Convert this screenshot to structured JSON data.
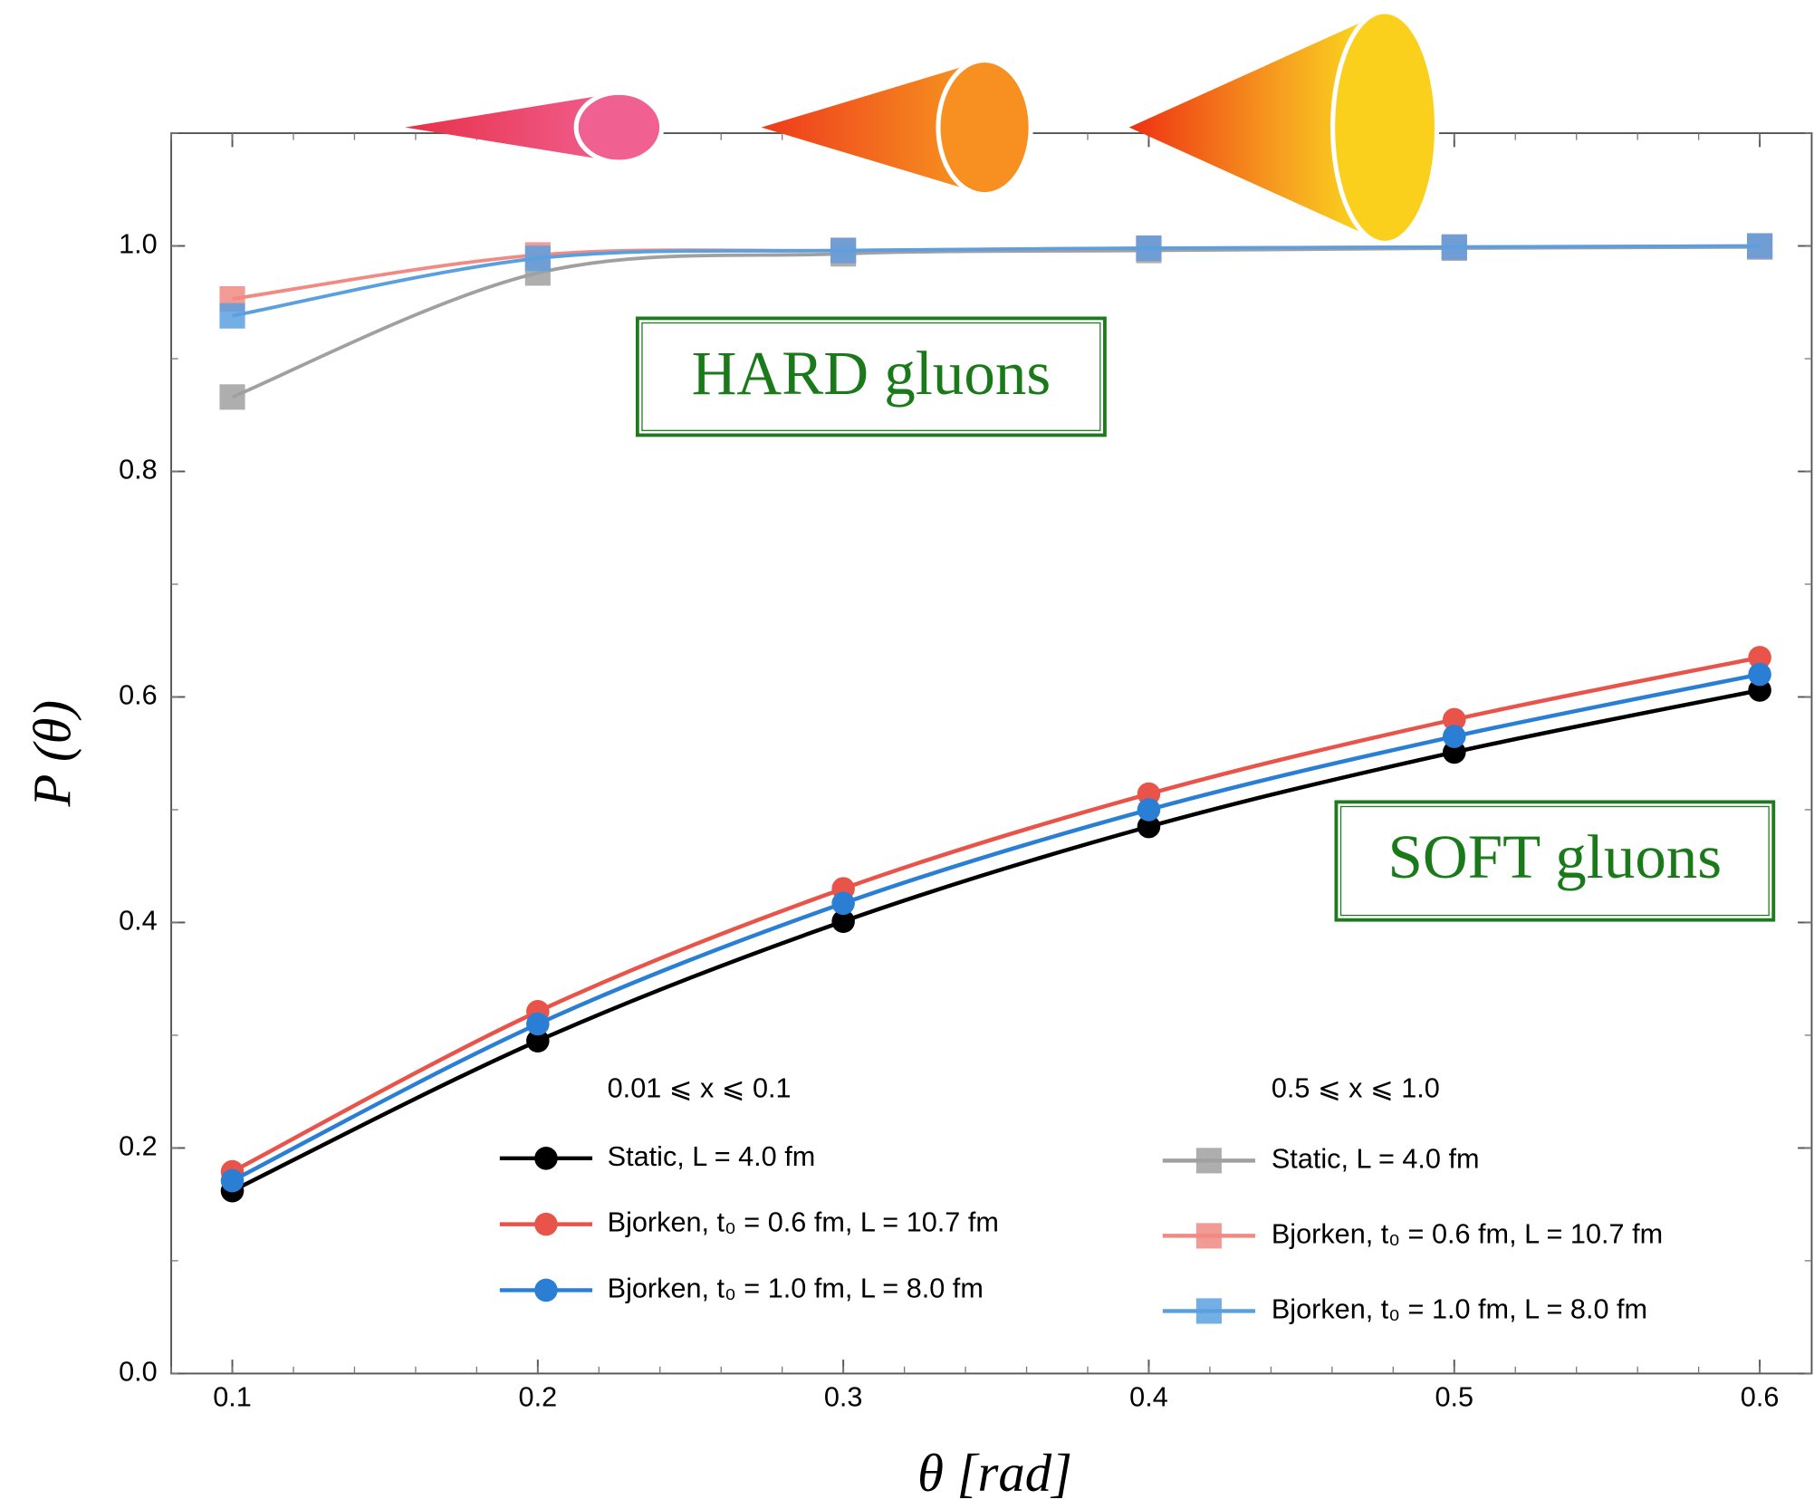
{
  "chart_data": {
    "type": "line",
    "x_label": "θ [rad]",
    "y_label": "P (θ)",
    "x": [
      0.1,
      0.2,
      0.3,
      0.4,
      0.5,
      0.6
    ],
    "xlim": [
      0.08,
      0.617
    ],
    "ylim": [
      0,
      1.1
    ],
    "xticks": [
      0.1,
      0.2,
      0.3,
      0.4,
      0.5,
      0.6
    ],
    "yticks": [
      {
        "value": 0,
        "label": "0.0"
      },
      0.2,
      0.4,
      0.6,
      0.8,
      {
        "value": 1,
        "label": "1.0"
      }
    ],
    "legend_titles": [
      "0.01 ⩽ x ⩽ 0.1",
      "0.5 ⩽ x ⩽ 1.0"
    ],
    "annotations": [
      "HARD gluons",
      "SOFT gluons"
    ],
    "series": [
      {
        "name": "Static, L = 4.0 fm",
        "color": "#000000",
        "marker": "circle",
        "values": [
          0.162,
          0.295,
          0.401,
          0.485,
          0.551,
          0.606
        ]
      },
      {
        "name": "Bjorken, t₀ = 0.6 fm, L = 10.7 fm",
        "color": "#e8534a",
        "marker": "circle",
        "values": [
          0.179,
          0.321,
          0.43,
          0.514,
          0.58,
          0.635
        ]
      },
      {
        "name": "Bjorken, t₀ = 1.0 fm, L = 8.0 fm",
        "color": "#2a7fd4",
        "marker": "circle",
        "values": [
          0.171,
          0.31,
          0.417,
          0.5,
          0.565,
          0.62
        ]
      },
      {
        "name": "Static, L = 4.0 fm",
        "color": "#a0a0a0",
        "marker": "square",
        "values": [
          0.866,
          0.976,
          0.993,
          0.996,
          0.998,
          0.999
        ]
      },
      {
        "name": "Bjorken, t₀ = 0.6 fm, L = 10.7 fm",
        "color": "#f08a82",
        "marker": "square",
        "values": [
          0.953,
          0.992,
          0.996,
          0.998,
          0.999,
          1.0
        ]
      },
      {
        "name": "Bjorken, t₀ = 1.0 fm, L = 8.0 fm",
        "color": "#5aa0e0",
        "marker": "square",
        "values": [
          0.938,
          0.989,
          0.996,
          0.998,
          0.999,
          1.0
        ]
      }
    ]
  }
}
